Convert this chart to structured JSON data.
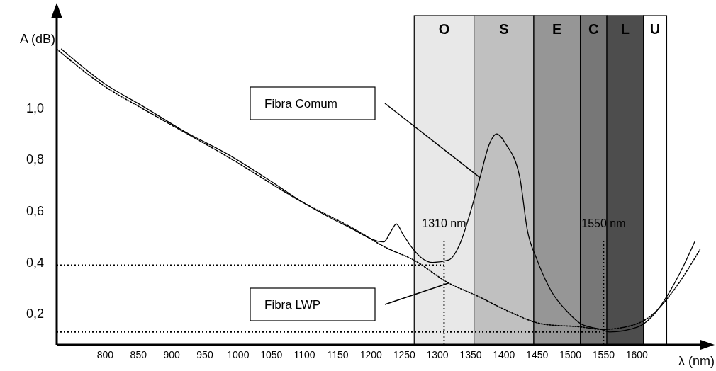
{
  "chart_data": {
    "type": "line",
    "xlabel": "λ (nm)",
    "ylabel": "A (dB)",
    "xlim": [
      727,
      1700
    ],
    "ylim": [
      0.08,
      1.36
    ],
    "xticks": [
      800,
      850,
      900,
      950,
      1000,
      1050,
      1100,
      1150,
      1200,
      1250,
      1300,
      1350,
      1400,
      1450,
      1500,
      1550,
      1600
    ],
    "yticks": [
      {
        "value": 0.2,
        "label": "0,2"
      },
      {
        "value": 0.4,
        "label": "0,4"
      },
      {
        "value": 0.6,
        "label": "0,6"
      },
      {
        "value": 0.8,
        "label": "0,8"
      },
      {
        "value": 1.0,
        "label": "1,0"
      }
    ],
    "grid": false,
    "legend": false,
    "marker": "none",
    "series": [
      {
        "name": "Fibra Comum",
        "color": "#000000",
        "line_style": "solid",
        "x": [
          734,
          802,
          855,
          919,
          985,
          1047,
          1100,
          1165,
          1219,
          1232,
          1238,
          1248,
          1261,
          1275,
          1293,
          1317,
          1335,
          1349,
          1364,
          1378,
          1389,
          1403,
          1424,
          1435,
          1450,
          1471,
          1495,
          1517,
          1546,
          1559,
          1602,
          1623,
          1648,
          1669,
          1687
        ],
        "values": [
          1.23,
          1.09,
          1.01,
          0.91,
          0.82,
          0.72,
          0.63,
          0.54,
          0.48,
          0.53,
          0.55,
          0.51,
          0.46,
          0.42,
          0.4,
          0.41,
          0.48,
          0.59,
          0.73,
          0.86,
          0.9,
          0.86,
          0.73,
          0.53,
          0.41,
          0.29,
          0.21,
          0.16,
          0.14,
          0.13,
          0.15,
          0.19,
          0.28,
          0.38,
          0.48
        ]
      },
      {
        "name": "Fibra LWP",
        "color": "#000000",
        "line_style": "dotted",
        "x": [
          727,
          802,
          855,
          985,
          1100,
          1175,
          1221,
          1264,
          1317,
          1360,
          1407,
          1460,
          1514,
          1549,
          1584,
          1620,
          1655,
          1695
        ],
        "values": [
          1.23,
          1.08,
          1.0,
          0.81,
          0.63,
          0.53,
          0.46,
          0.41,
          0.32,
          0.27,
          0.21,
          0.16,
          0.15,
          0.14,
          0.15,
          0.19,
          0.29,
          0.45
        ]
      }
    ],
    "bands": [
      {
        "axis": "x",
        "from": 1265,
        "to": 1355,
        "label": "O",
        "color": "#e8e8e8"
      },
      {
        "axis": "x",
        "from": 1355,
        "to": 1445,
        "label": "S",
        "color": "#c0c0c0"
      },
      {
        "axis": "x",
        "from": 1445,
        "to": 1515,
        "label": "E",
        "color": "#969696"
      },
      {
        "axis": "x",
        "from": 1515,
        "to": 1555,
        "label": "C",
        "color": "#777777"
      },
      {
        "axis": "x",
        "from": 1555,
        "to": 1610,
        "label": "L",
        "color": "#4d4d4d"
      },
      {
        "axis": "x",
        "from": 1610,
        "to": 1645,
        "label": "U",
        "color": "#ffffff"
      }
    ],
    "ref_lines": [
      {
        "axis": "x",
        "value": 1310,
        "label": "1310 nm",
        "line_style": "dotted",
        "color": "#000000"
      },
      {
        "axis": "x",
        "value": 1550,
        "label": "1550 nm",
        "line_style": "dotted",
        "color": "#000000"
      },
      {
        "axis": "y",
        "value": 0.39,
        "line_style": "dotted",
        "color": "#000000"
      },
      {
        "axis": "y",
        "value": 0.13,
        "line_style": "dotted",
        "color": "#000000"
      }
    ]
  }
}
